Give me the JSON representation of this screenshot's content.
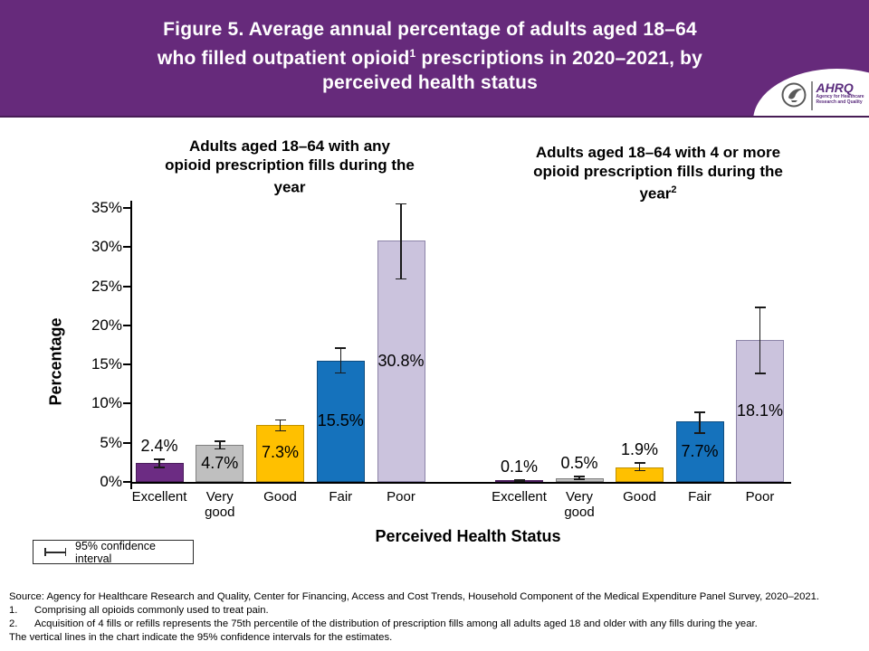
{
  "header": {
    "line1": "Figure 5. Average annual percentage of adults aged 18–64",
    "line2a": "who filled outpatient opioid",
    "line2_sup": "1",
    "line2b": " prescriptions in 2020–2021, by",
    "line3": "perceived health status",
    "logo": {
      "acronym": "AHRQ",
      "tagline1": "Agency for Healthcare",
      "tagline2": "Research and Quality"
    }
  },
  "chart_data": {
    "type": "bar",
    "categories": [
      "Excellent",
      "Very good",
      "Good",
      "Fair",
      "Poor"
    ],
    "ylabel": "Percentage",
    "xlabel": "Perceived Health Status",
    "ylim": [
      0,
      35
    ],
    "ytick_step": 5,
    "ytick_suffix": "%",
    "grid": false,
    "legend": "95% confidence interval",
    "legend_position": "bottom-left",
    "bar_colors": [
      "#6c2c83",
      "#bfbfbf",
      "#ffc000",
      "#1572bc",
      "#cbc3dd"
    ],
    "bar_border_colors": [
      "#4a1d5c",
      "#7f7f7f",
      "#bf9000",
      "#0f4c7f",
      "#8d84a8"
    ],
    "error_bar_color": "#1a1a1a",
    "panels": [
      {
        "title": "Adults aged 18–64 with any opioid prescription fills during the year",
        "title_lines": [
          "Adults aged 18–64 with any",
          "opioid prescription fills during the",
          "year"
        ],
        "title_sup": "",
        "values": [
          2.4,
          4.7,
          7.3,
          15.5,
          30.8
        ],
        "ci_low": [
          1.8,
          4.2,
          6.5,
          13.9,
          25.9
        ],
        "ci_high": [
          3.0,
          5.3,
          8.0,
          17.2,
          35.6
        ]
      },
      {
        "title": "Adults aged 18–64 with 4 or more opioid prescription fills during the year",
        "title_lines": [
          "Adults aged 18–64 with 4 or more",
          "opioid prescription fills during the",
          "year"
        ],
        "title_sup": "2",
        "values": [
          0.1,
          0.5,
          1.9,
          7.7,
          18.1
        ],
        "ci_low": [
          0.0,
          0.3,
          1.4,
          6.2,
          13.8
        ],
        "ci_high": [
          0.3,
          0.8,
          2.5,
          9.0,
          22.4
        ]
      }
    ]
  },
  "footer": {
    "source": "Source: Agency for Healthcare Research and Quality, Center for Financing, Access and Cost Trends, Household Component of the Medical Expenditure Panel Survey, 2020–2021.",
    "notes": [
      {
        "num": "1.",
        "text": "Comprising all opioids commonly used to treat pain."
      },
      {
        "num": "2.",
        "text": "Acquisition of 4 fills or refills represents the 75th percentile of the distribution of prescription fills among all adults aged 18 and older with any fills during the year."
      }
    ],
    "tail": "The vertical lines in the chart indicate the 95% confidence intervals for the estimates."
  }
}
